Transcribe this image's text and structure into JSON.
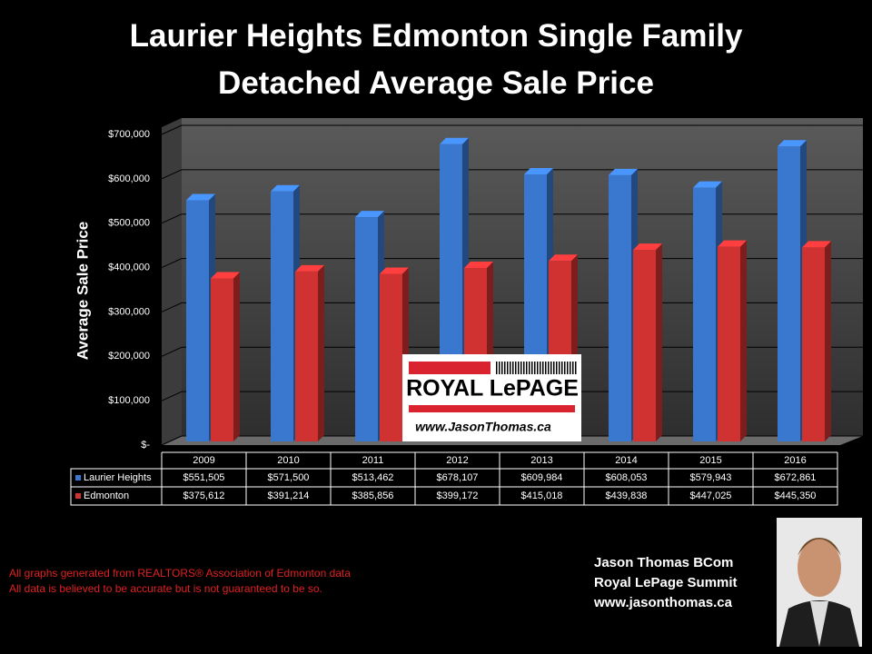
{
  "chart_data": {
    "type": "bar",
    "title": "Laurier Heights Edmonton Single Family Detached Average Sale Price",
    "ylabel": "Average Sale Price",
    "categories": [
      "2009",
      "2010",
      "2011",
      "2012",
      "2013",
      "2014",
      "2015",
      "2016"
    ],
    "series": [
      {
        "name": "Laurier Heights",
        "color": "#3a78d0",
        "values": [
          551505,
          571500,
          513462,
          678107,
          609984,
          608053,
          579943,
          672861
        ],
        "value_labels": [
          "$551,505",
          "$571,500",
          "$513,462",
          "$678,107",
          "$609,984",
          "$608,053",
          "$579,943",
          "$672,861"
        ]
      },
      {
        "name": "Edmonton",
        "color": "#d03232",
        "values": [
          375612,
          391214,
          385856,
          399172,
          415018,
          439838,
          447025,
          445350
        ],
        "value_labels": [
          "$375,612",
          "$391,214",
          "$385,856",
          "$399,172",
          "$415,018",
          "$439,838",
          "$447,025",
          "$445,350"
        ]
      }
    ],
    "ylim": [
      0,
      700000
    ],
    "yticks": [
      {
        "value": 0,
        "label": "$-"
      },
      {
        "value": 100000,
        "label": "$100,000"
      },
      {
        "value": 200000,
        "label": "$200,000"
      },
      {
        "value": 300000,
        "label": "$300,000"
      },
      {
        "value": 400000,
        "label": "$400,000"
      },
      {
        "value": 500000,
        "label": "$500,000"
      },
      {
        "value": 600000,
        "label": "$600,000"
      },
      {
        "value": 700000,
        "label": "$700,000"
      }
    ],
    "grid": true
  },
  "logo": {
    "brand": "ROYAL LePAGE",
    "url": "www.JasonThomas.ca"
  },
  "notes": [
    "All graphs generated from REALTORS® Association of Edmonton data",
    "All data is believed to be accurate but is not guaranteed to be so."
  ],
  "signature": [
    "Jason Thomas BCom",
    "Royal LePage Summit",
    "www.jasonthomas.ca"
  ]
}
